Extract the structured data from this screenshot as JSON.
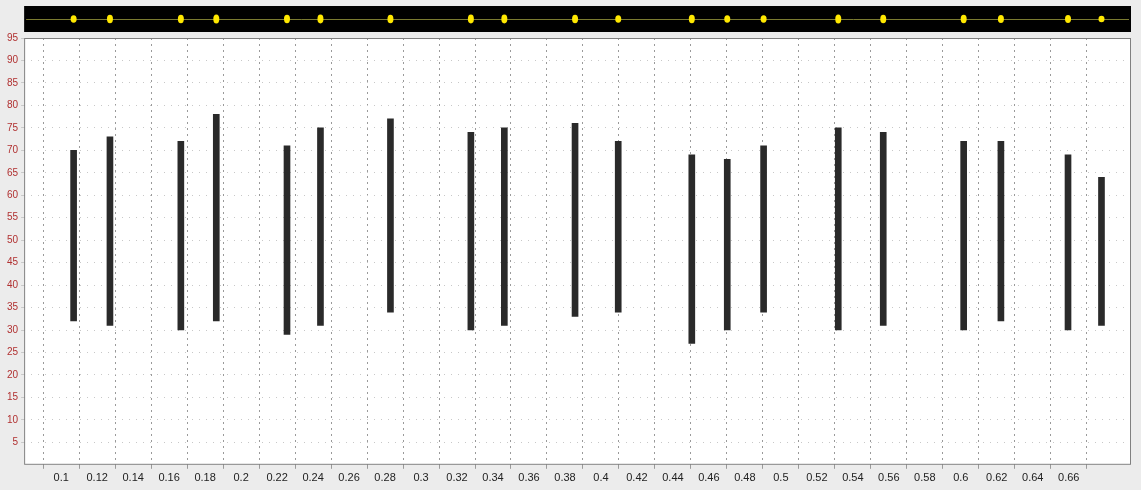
{
  "chart_data": {
    "type": "bar",
    "x": [
      0.1069,
      0.1271,
      0.1665,
      0.1862,
      0.2255,
      0.2441,
      0.283,
      0.3277,
      0.3463,
      0.3856,
      0.4096,
      0.4505,
      0.4702,
      0.4904,
      0.5319,
      0.5569,
      0.6016,
      0.6223,
      0.6596,
      0.6782
    ],
    "values": [
      [
        32,
        70
      ],
      [
        31,
        73
      ],
      [
        30,
        72
      ],
      [
        32,
        78
      ],
      [
        29,
        71
      ],
      [
        31,
        75
      ],
      [
        34,
        77
      ],
      [
        30,
        74
      ],
      [
        31,
        75
      ],
      [
        33,
        76
      ],
      [
        34,
        72
      ],
      [
        27,
        69
      ],
      [
        30,
        68
      ],
      [
        34,
        71
      ],
      [
        30,
        75
      ],
      [
        31,
        74
      ],
      [
        30,
        72
      ],
      [
        32,
        72
      ],
      [
        30,
        69
      ],
      [
        31,
        64
      ]
    ],
    "color": "#2a2a2a",
    "xlim": [
      0.09,
      0.684
    ],
    "xticks": [
      0.1,
      0.12,
      0.14,
      0.16,
      0.18,
      0.2,
      0.22,
      0.24,
      0.26,
      0.28,
      0.3,
      0.32,
      0.34,
      0.36,
      0.38,
      0.4,
      0.42,
      0.44,
      0.46,
      0.48,
      0.5,
      0.52,
      0.54,
      0.56,
      0.58,
      0.6,
      0.62,
      0.64,
      0.66
    ],
    "ylim": [
      0,
      95
    ],
    "yticks": [
      5,
      10,
      15,
      20,
      25,
      30,
      35,
      40,
      45,
      50,
      55,
      60,
      65,
      70,
      75,
      80,
      85,
      90,
      95
    ],
    "grid": true
  }
}
